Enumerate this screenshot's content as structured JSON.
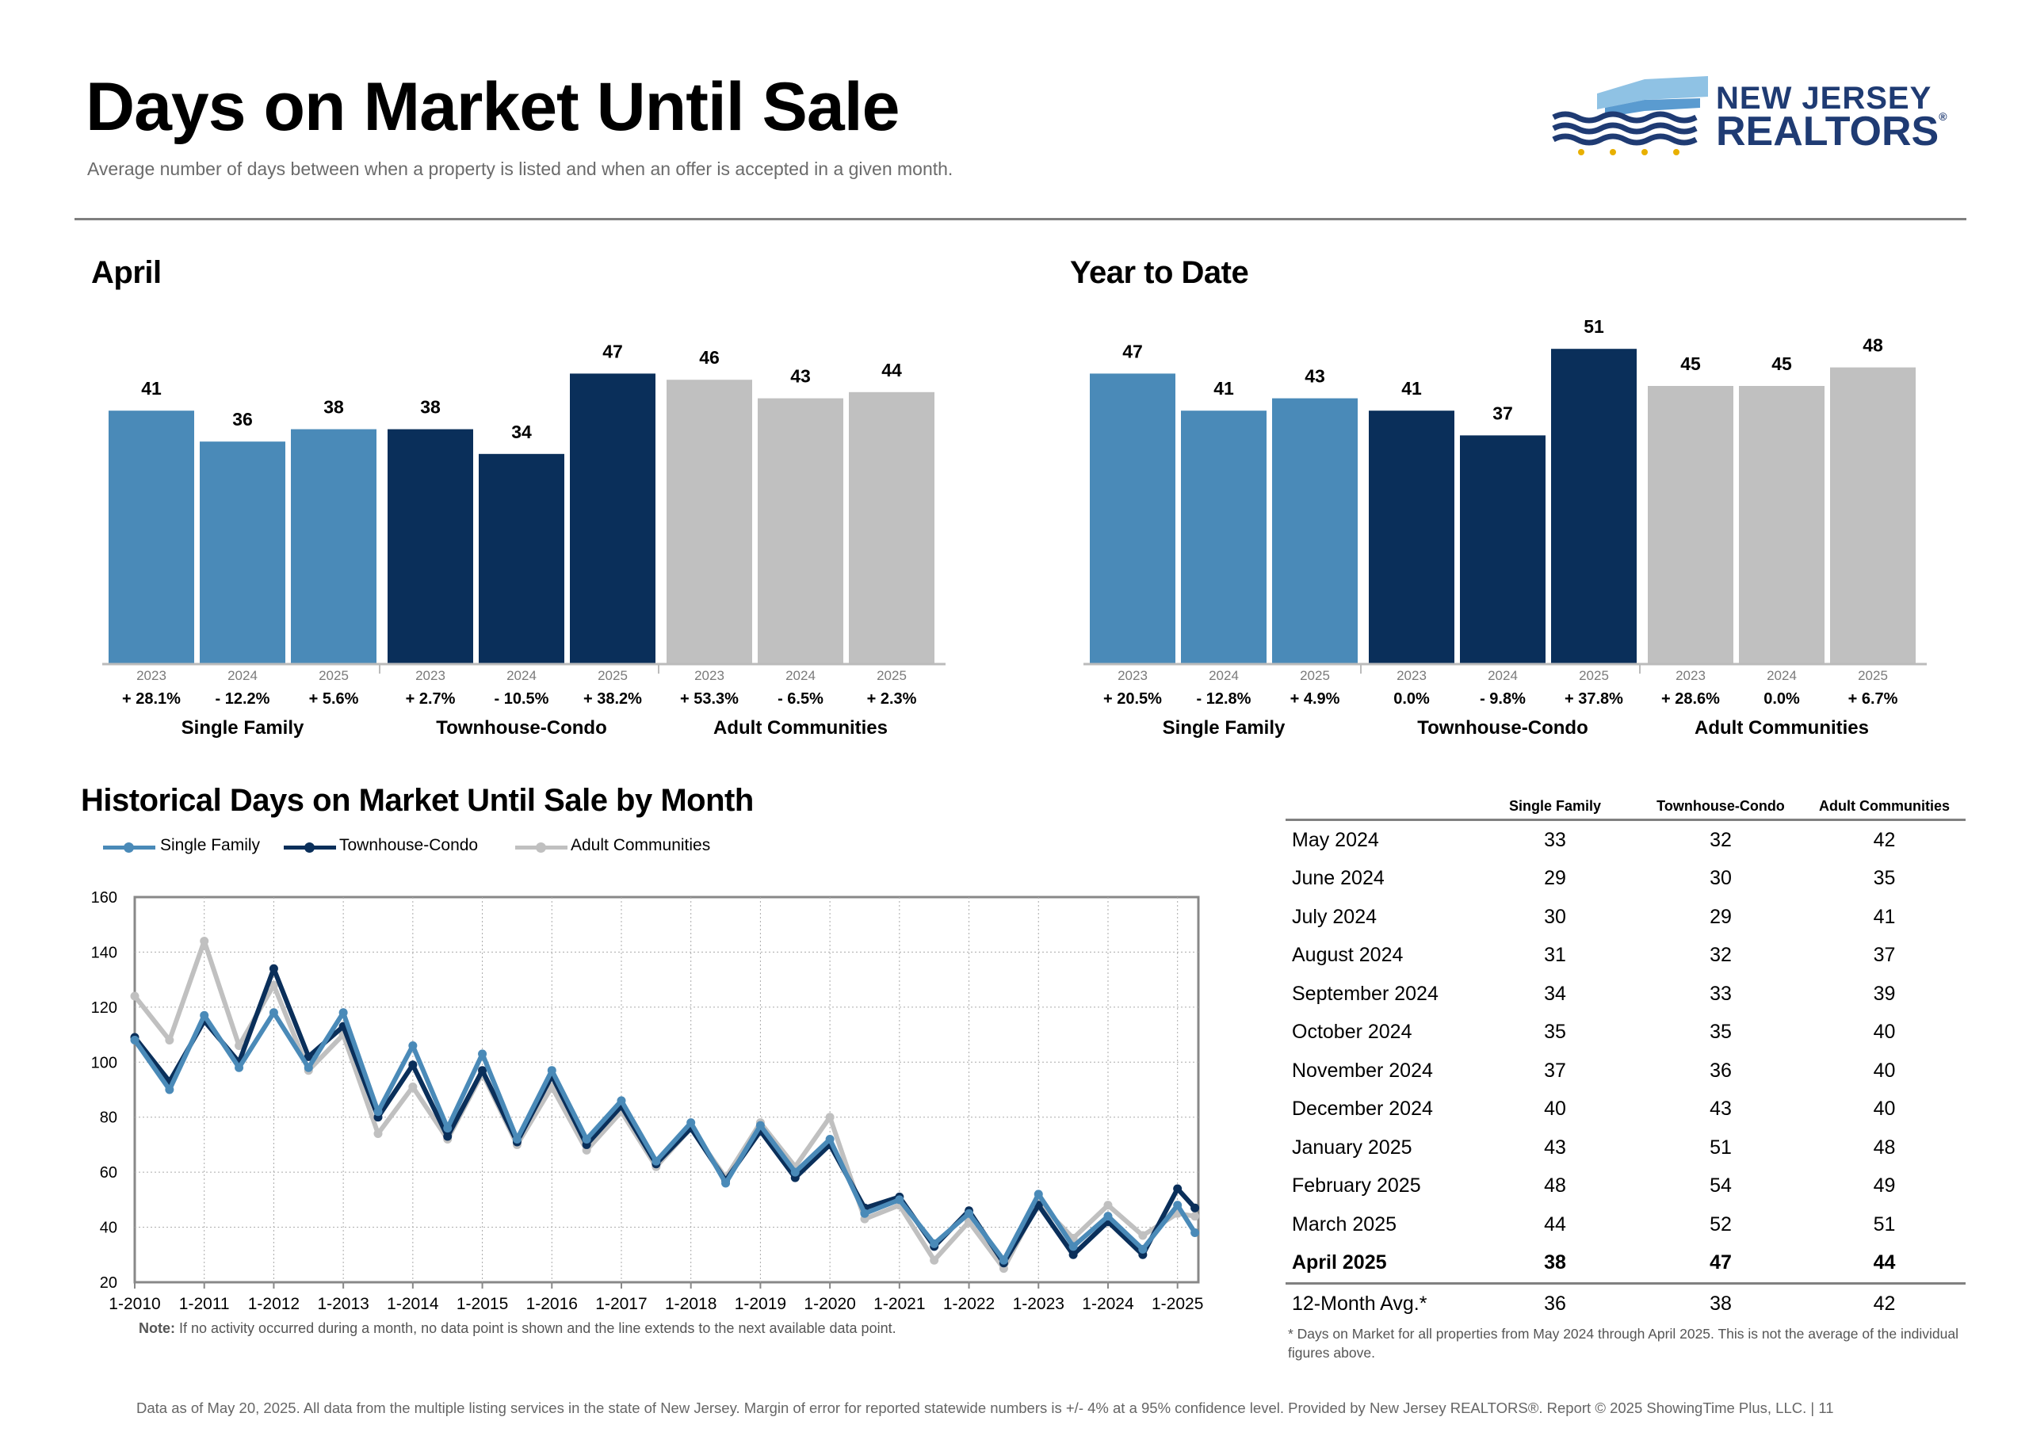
{
  "header": {
    "title": "Days on Market Until Sale",
    "subtitle": "Average number of days between when a property is listed and when an offer is accepted in a given month.",
    "logo_line1": "NEW JERSEY",
    "logo_line2": "REALTORS",
    "logo_mark": "®"
  },
  "colors": {
    "single_family": "#4a8ab8",
    "townhouse_condo": "#0a2f5a",
    "adult_communities": "#c0c0c0"
  },
  "chart_data": [
    {
      "type": "bar",
      "title": "April",
      "groups": [
        {
          "name": "Single Family",
          "years": [
            "2023",
            "2024",
            "2025"
          ],
          "values": [
            41,
            36,
            38
          ],
          "changes": [
            "+ 28.1%",
            "- 12.2%",
            "+ 5.6%"
          ]
        },
        {
          "name": "Townhouse-Condo",
          "years": [
            "2023",
            "2024",
            "2025"
          ],
          "values": [
            38,
            34,
            47
          ],
          "changes": [
            "+ 2.7%",
            "- 10.5%",
            "+ 38.2%"
          ]
        },
        {
          "name": "Adult Communities",
          "years": [
            "2023",
            "2024",
            "2025"
          ],
          "values": [
            46,
            43,
            44
          ],
          "changes": [
            "+ 53.3%",
            "- 6.5%",
            "+ 2.3%"
          ]
        }
      ]
    },
    {
      "type": "bar",
      "title": "Year to Date",
      "groups": [
        {
          "name": "Single Family",
          "years": [
            "2023",
            "2024",
            "2025"
          ],
          "values": [
            47,
            41,
            43
          ],
          "changes": [
            "+ 20.5%",
            "- 12.8%",
            "+ 4.9%"
          ]
        },
        {
          "name": "Townhouse-Condo",
          "years": [
            "2023",
            "2024",
            "2025"
          ],
          "values": [
            41,
            37,
            51
          ],
          "changes": [
            "0.0%",
            "- 9.8%",
            "+ 37.8%"
          ]
        },
        {
          "name": "Adult Communities",
          "years": [
            "2023",
            "2024",
            "2025"
          ],
          "values": [
            45,
            45,
            48
          ],
          "changes": [
            "+ 28.6%",
            "0.0%",
            "+ 6.7%"
          ]
        }
      ]
    },
    {
      "type": "line",
      "title": "Historical Days on Market Until Sale by Month",
      "x_ticks": [
        "1-2010",
        "1-2011",
        "1-2012",
        "1-2013",
        "1-2014",
        "1-2015",
        "1-2016",
        "1-2017",
        "1-2018",
        "1-2019",
        "1-2020",
        "1-2021",
        "1-2022",
        "1-2023",
        "1-2024",
        "1-2025"
      ],
      "ylim": [
        20,
        160
      ],
      "y_ticks": [
        20,
        40,
        60,
        80,
        100,
        120,
        140,
        160
      ],
      "grid": true,
      "legend": "top-left",
      "note_label": "Note:",
      "note": "If no activity occurred during a month, no data point is shown and the line extends to the next available data point.",
      "series": [
        {
          "name": "Single Family",
          "x_years": [
            2010,
            2010.5,
            2011,
            2011.5,
            2012,
            2012.5,
            2013,
            2013.5,
            2014,
            2014.5,
            2015,
            2015.5,
            2016,
            2016.5,
            2017,
            2017.5,
            2018,
            2018.5,
            2019,
            2019.5,
            2020,
            2020.5,
            2021,
            2021.5,
            2022,
            2022.5,
            2023,
            2023.5,
            2024,
            2024.5,
            2025,
            2025.25
          ],
          "values": [
            108,
            90,
            117,
            98,
            118,
            98,
            118,
            82,
            106,
            76,
            103,
            72,
            97,
            72,
            86,
            64,
            78,
            56,
            77,
            60,
            72,
            45,
            50,
            34,
            45,
            28,
            52,
            33,
            44,
            32,
            48,
            38
          ]
        },
        {
          "name": "Townhouse-Condo",
          "x_years": [
            2010,
            2010.5,
            2011,
            2011.5,
            2012,
            2012.5,
            2013,
            2013.5,
            2014,
            2014.5,
            2015,
            2015.5,
            2016,
            2016.5,
            2017,
            2017.5,
            2018,
            2018.5,
            2019,
            2019.5,
            2020,
            2020.5,
            2021,
            2021.5,
            2022,
            2022.5,
            2023,
            2023.5,
            2024,
            2024.5,
            2025,
            2025.25
          ],
          "values": [
            109,
            93,
            115,
            100,
            134,
            102,
            113,
            80,
            99,
            73,
            97,
            71,
            95,
            70,
            84,
            63,
            76,
            57,
            75,
            58,
            70,
            47,
            51,
            33,
            46,
            27,
            48,
            30,
            42,
            30,
            54,
            47
          ]
        },
        {
          "name": "Adult Communities",
          "x_years": [
            2010,
            2010.5,
            2011,
            2011.5,
            2012,
            2012.5,
            2013,
            2013.5,
            2014,
            2014.5,
            2015,
            2015.5,
            2016,
            2016.5,
            2017,
            2017.5,
            2018,
            2018.5,
            2019,
            2019.5,
            2020,
            2020.5,
            2021,
            2021.5,
            2022,
            2022.5,
            2023,
            2023.5,
            2024,
            2024.5,
            2025,
            2025.25
          ],
          "values": [
            124,
            108,
            144,
            106,
            128,
            97,
            110,
            74,
            91,
            72,
            96,
            70,
            91,
            68,
            82,
            62,
            76,
            58,
            78,
            62,
            80,
            43,
            48,
            28,
            42,
            25,
            49,
            36,
            48,
            37,
            45,
            44
          ]
        }
      ]
    }
  ],
  "table": {
    "columns": [
      "",
      "Single Family",
      "Townhouse-Condo",
      "Adult Communities"
    ],
    "rows": [
      [
        "May 2024",
        "33",
        "32",
        "42"
      ],
      [
        "June 2024",
        "29",
        "30",
        "35"
      ],
      [
        "July 2024",
        "30",
        "29",
        "41"
      ],
      [
        "August 2024",
        "31",
        "32",
        "37"
      ],
      [
        "September 2024",
        "34",
        "33",
        "39"
      ],
      [
        "October 2024",
        "35",
        "35",
        "40"
      ],
      [
        "November 2024",
        "37",
        "36",
        "40"
      ],
      [
        "December 2024",
        "40",
        "43",
        "40"
      ],
      [
        "January 2025",
        "43",
        "51",
        "48"
      ],
      [
        "February 2025",
        "48",
        "54",
        "49"
      ],
      [
        "March 2025",
        "44",
        "52",
        "51"
      ],
      [
        "April 2025",
        "38",
        "47",
        "44"
      ]
    ],
    "average_row": [
      "12-Month Avg.*",
      "36",
      "38",
      "42"
    ],
    "footnote": "* Days on Market for all properties from May 2024 through April 2025. This is not the average of the individual figures above."
  },
  "footer": {
    "text": "Data as of May 20, 2025. All data from the multiple listing services in the state of New Jersey. Margin of error for reported statewide numbers is +/- 4% at a 95% confidence level. Provided by New Jersey REALTORS®. Report © 2025 ShowingTime Plus, LLC. |  11"
  }
}
